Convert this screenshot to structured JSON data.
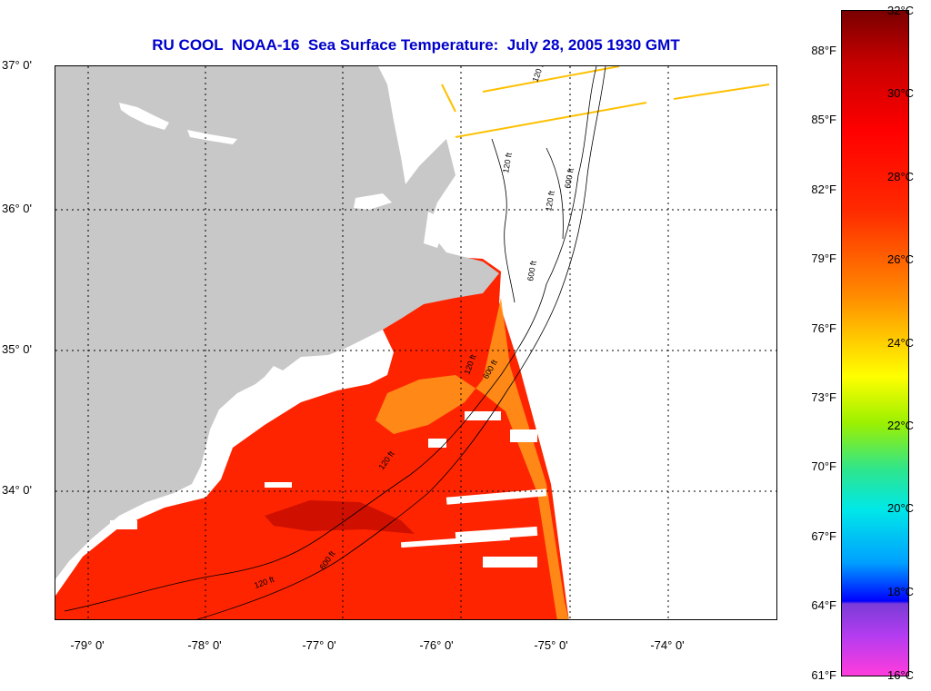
{
  "title": "RU COOL  NOAA-16  Sea Surface Temperature:  July 28, 2005 1930 GMT",
  "map": {
    "lat_labels": [
      "37° 0'",
      "36° 0'",
      "35° 0'",
      "34° 0'"
    ],
    "lon_labels": [
      "-79° 0'",
      "-78° 0'",
      "-77° 0'",
      "-76° 0'",
      "-75° 0'",
      "-74° 0'"
    ],
    "contour_labels": [
      "120 ft",
      "120 ft",
      "600 ft",
      "120 ft",
      "600 ft",
      "120 ft",
      "600 ft",
      "120 ft",
      "600 ft",
      "120 ft"
    ],
    "colors": {
      "land": "#c8c8c8",
      "warm": "#ff2400",
      "warmest": "#a80000",
      "gulfstream": "#ff9a1a",
      "no_data": "#ffffff"
    }
  },
  "colorbar": {
    "fahrenheit": [
      "88°F",
      "85°F",
      "82°F",
      "79°F",
      "76°F",
      "73°F",
      "70°F",
      "67°F",
      "64°F",
      "61°F"
    ],
    "celsius": [
      "32°C",
      "30°C",
      "28°C",
      "26°C",
      "24°C",
      "22°C",
      "20°C",
      "18°C",
      "16°C"
    ]
  }
}
